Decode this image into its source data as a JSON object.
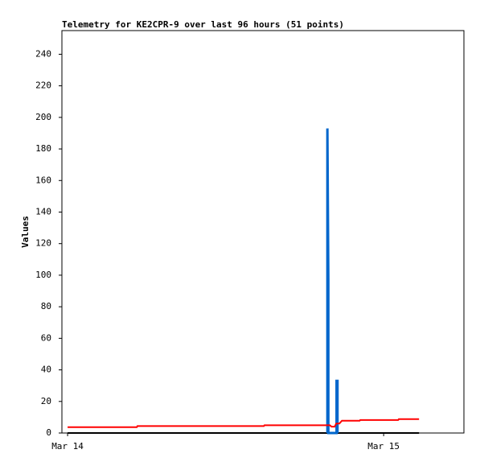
{
  "chart_data": {
    "type": "line",
    "title": "Telemetry for KE2CPR-9 over last 96 hours (51 points)",
    "y_label": "Values",
    "xlim": [
      -0.018,
      1.254
    ],
    "xticks": [
      {
        "value": 0,
        "label": "Mar 14"
      },
      {
        "value": 1,
        "label": "Mar 15"
      }
    ],
    "ylim": [
      0,
      255
    ],
    "yticks": [
      0,
      20,
      40,
      60,
      80,
      100,
      120,
      140,
      160,
      180,
      200,
      220,
      240
    ],
    "series": [
      {
        "color": "#000000",
        "x": [
          0,
          1.112
        ],
        "values": [
          0,
          0
        ]
      },
      {
        "color": "#0066cc",
        "x": [
          0.822,
          0.822,
          0.825,
          0.825,
          0.851,
          0.851,
          0.854,
          0.854
        ],
        "values": [
          0,
          193,
          97,
          0,
          0,
          33,
          33,
          0
        ]
      },
      {
        "color": "#ff0000",
        "x": [
          0,
          0.219,
          0.221,
          0.621,
          0.623,
          0.83,
          0.835,
          0.845,
          0.85,
          0.86,
          0.868,
          0.924,
          0.926,
          1.046,
          1.048,
          1.112
        ],
        "values": [
          3.7,
          3.7,
          4.4,
          4.4,
          4.9,
          4.9,
          4.0,
          4.0,
          6.0,
          6.0,
          7.8,
          7.8,
          8.2,
          8.2,
          8.8,
          8.8
        ]
      }
    ]
  }
}
